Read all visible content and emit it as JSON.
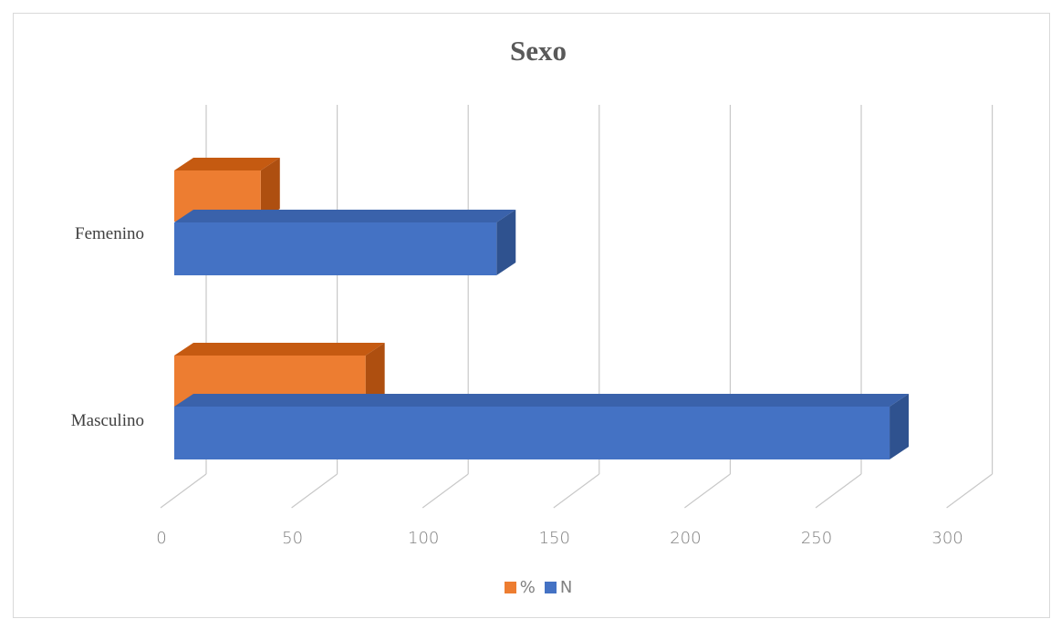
{
  "colors": {
    "n_front": "#4472c4",
    "n_top": "#3a62ab",
    "n_side": "#2f528f",
    "pct_front": "#ed7d31",
    "pct_top": "#c55a11",
    "pct_side": "#ae4f10",
    "grid": "#c8c8c8"
  },
  "chart_data": {
    "type": "bar",
    "orientation": "horizontal",
    "three_d": true,
    "title": "Sexo",
    "categories": [
      "Masculino",
      "Femenino"
    ],
    "series": [
      {
        "name": "N",
        "values": [
          273,
          123
        ]
      },
      {
        "name": "%",
        "values": [
          73,
          33
        ]
      }
    ],
    "x_ticks": [
      "0",
      "50",
      "100",
      "150",
      "200",
      "250",
      "300"
    ],
    "xlim": [
      0,
      300
    ],
    "grid": true,
    "legend_position": "bottom"
  }
}
